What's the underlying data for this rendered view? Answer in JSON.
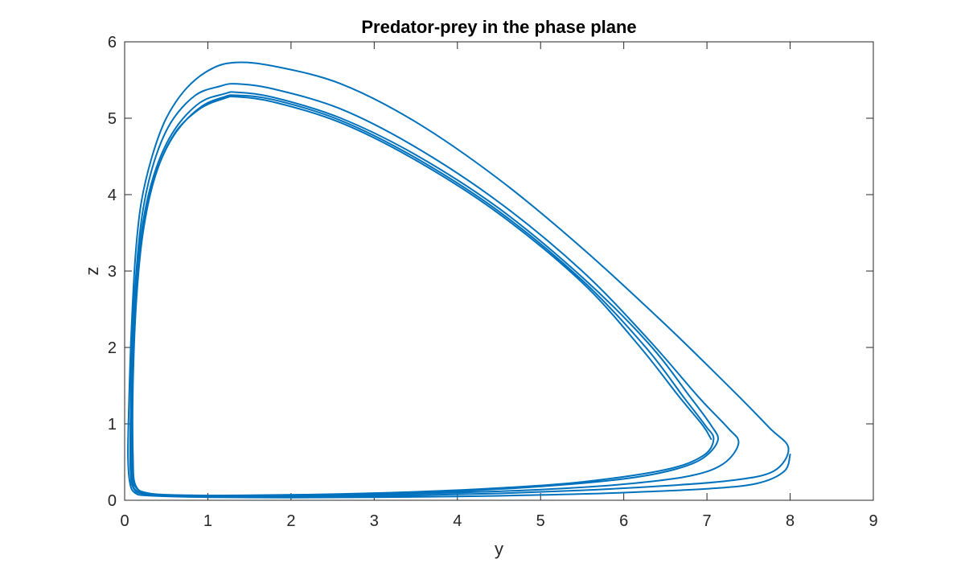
{
  "chart_data": {
    "type": "line",
    "title": "Predator-prey in the phase plane",
    "xlabel": "y",
    "ylabel": "z",
    "xlim": [
      0,
      9
    ],
    "ylim": [
      0,
      6
    ],
    "xticks": [
      0,
      1,
      2,
      3,
      4,
      5,
      6,
      7,
      8,
      9
    ],
    "yticks": [
      0,
      1,
      2,
      3,
      4,
      5,
      6
    ],
    "grid": false,
    "box": true,
    "line_color": "#0072BD",
    "series": [
      {
        "points": [
          [
            8.0,
            0.6
          ],
          [
            7.93,
            0.38
          ],
          [
            7.6,
            0.22
          ],
          [
            7.0,
            0.15
          ],
          [
            6.0,
            0.1
          ],
          [
            5.0,
            0.07
          ],
          [
            4.0,
            0.05
          ],
          [
            3.0,
            0.04
          ],
          [
            2.0,
            0.035
          ],
          [
            1.0,
            0.04
          ],
          [
            0.3,
            0.06
          ],
          [
            0.12,
            0.1
          ],
          [
            0.06,
            0.25
          ],
          [
            0.04,
            0.6
          ],
          [
            0.05,
            1.2
          ],
          [
            0.08,
            2.2
          ],
          [
            0.13,
            3.2
          ],
          [
            0.2,
            3.9
          ],
          [
            0.33,
            4.5
          ],
          [
            0.5,
            5.0
          ],
          [
            0.75,
            5.4
          ],
          [
            1.05,
            5.65
          ],
          [
            1.35,
            5.73
          ],
          [
            1.8,
            5.68
          ],
          [
            2.6,
            5.45
          ],
          [
            3.5,
            4.95
          ],
          [
            4.5,
            4.2
          ],
          [
            5.5,
            3.3
          ],
          [
            6.5,
            2.3
          ],
          [
            7.3,
            1.45
          ],
          [
            7.75,
            0.95
          ],
          [
            7.98,
            0.68
          ],
          [
            7.8,
            0.38
          ],
          [
            7.3,
            0.26
          ],
          [
            6.5,
            0.19
          ],
          [
            5.5,
            0.13
          ],
          [
            4.5,
            0.09
          ],
          [
            3.5,
            0.065
          ],
          [
            2.5,
            0.05
          ],
          [
            1.5,
            0.045
          ],
          [
            0.7,
            0.05
          ],
          [
            0.25,
            0.08
          ],
          [
            0.11,
            0.15
          ],
          [
            0.07,
            0.4
          ],
          [
            0.07,
            1.0
          ],
          [
            0.09,
            2.0
          ],
          [
            0.14,
            3.0
          ],
          [
            0.22,
            3.8
          ],
          [
            0.36,
            4.45
          ],
          [
            0.56,
            4.95
          ],
          [
            0.85,
            5.3
          ],
          [
            1.15,
            5.42
          ],
          [
            1.35,
            5.45
          ],
          [
            1.8,
            5.38
          ],
          [
            2.6,
            5.12
          ],
          [
            3.5,
            4.62
          ],
          [
            4.5,
            3.9
          ],
          [
            5.5,
            3.0
          ],
          [
            6.3,
            2.1
          ],
          [
            6.9,
            1.35
          ],
          [
            7.25,
            0.95
          ],
          [
            7.38,
            0.75
          ],
          [
            7.2,
            0.48
          ],
          [
            6.8,
            0.32
          ],
          [
            6.0,
            0.21
          ],
          [
            5.0,
            0.14
          ],
          [
            4.0,
            0.1
          ],
          [
            3.0,
            0.075
          ],
          [
            2.0,
            0.06
          ],
          [
            1.0,
            0.055
          ],
          [
            0.4,
            0.07
          ],
          [
            0.15,
            0.12
          ],
          [
            0.09,
            0.3
          ],
          [
            0.08,
            0.9
          ],
          [
            0.1,
            1.9
          ],
          [
            0.15,
            2.9
          ],
          [
            0.23,
            3.7
          ],
          [
            0.38,
            4.35
          ],
          [
            0.6,
            4.85
          ],
          [
            0.9,
            5.2
          ],
          [
            1.2,
            5.32
          ],
          [
            1.35,
            5.34
          ],
          [
            1.8,
            5.27
          ],
          [
            2.6,
            5.0
          ],
          [
            3.5,
            4.52
          ],
          [
            4.5,
            3.82
          ],
          [
            5.5,
            2.92
          ],
          [
            6.3,
            2.05
          ],
          [
            6.8,
            1.35
          ],
          [
            7.05,
            0.98
          ],
          [
            7.13,
            0.78
          ],
          [
            6.95,
            0.55
          ],
          [
            6.6,
            0.4
          ],
          [
            6.0,
            0.28
          ],
          [
            5.0,
            0.18
          ],
          [
            4.0,
            0.12
          ],
          [
            3.0,
            0.09
          ],
          [
            2.0,
            0.07
          ],
          [
            1.0,
            0.06
          ],
          [
            0.4,
            0.075
          ],
          [
            0.16,
            0.14
          ],
          [
            0.1,
            0.35
          ],
          [
            0.09,
            1.0
          ],
          [
            0.11,
            2.0
          ],
          [
            0.16,
            2.95
          ],
          [
            0.24,
            3.72
          ],
          [
            0.4,
            4.35
          ],
          [
            0.62,
            4.82
          ],
          [
            0.92,
            5.15
          ],
          [
            1.2,
            5.28
          ],
          [
            1.35,
            5.3
          ],
          [
            1.8,
            5.24
          ],
          [
            2.6,
            4.97
          ],
          [
            3.5,
            4.48
          ],
          [
            4.5,
            3.78
          ],
          [
            5.5,
            2.88
          ],
          [
            6.25,
            2.02
          ],
          [
            6.72,
            1.35
          ],
          [
            6.98,
            0.98
          ],
          [
            7.08,
            0.8
          ],
          [
            6.95,
            0.58
          ],
          [
            6.5,
            0.4
          ],
          [
            5.5,
            0.24
          ],
          [
            4.5,
            0.16
          ],
          [
            3.5,
            0.11
          ],
          [
            2.5,
            0.08
          ],
          [
            1.5,
            0.065
          ],
          [
            0.8,
            0.065
          ],
          [
            0.3,
            0.09
          ],
          [
            0.13,
            0.2
          ],
          [
            0.1,
            0.6
          ],
          [
            0.1,
            1.5
          ],
          [
            0.14,
            2.6
          ],
          [
            0.22,
            3.5
          ],
          [
            0.37,
            4.25
          ],
          [
            0.6,
            4.8
          ],
          [
            0.9,
            5.12
          ],
          [
            1.2,
            5.26
          ],
          [
            1.35,
            5.28
          ],
          [
            1.8,
            5.21
          ],
          [
            2.6,
            4.94
          ],
          [
            3.5,
            4.45
          ],
          [
            4.5,
            3.75
          ],
          [
            5.5,
            2.85
          ],
          [
            6.2,
            2.0
          ],
          [
            6.67,
            1.35
          ],
          [
            6.95,
            0.98
          ],
          [
            7.05,
            0.8
          ]
        ]
      }
    ]
  }
}
